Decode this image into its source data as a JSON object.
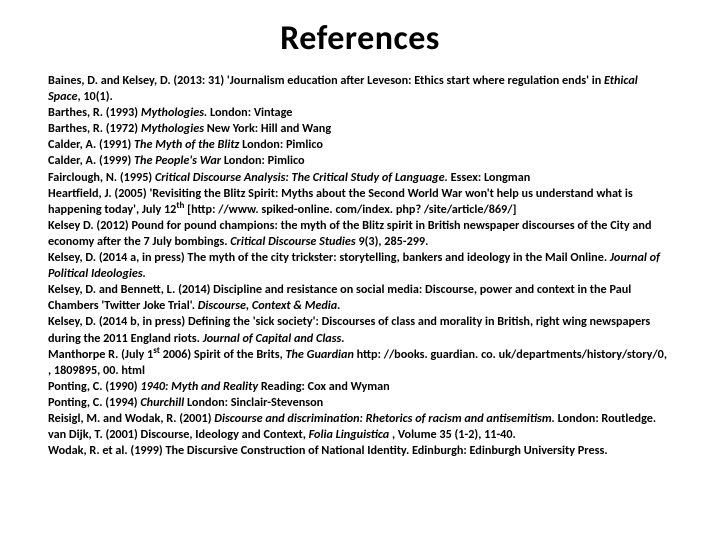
{
  "title": "References",
  "refs": [
    "Baines, D. and Kelsey, D. (2013: 31) 'Journalism education after Leveson: Ethics start where regulation ends' in <em>Ethical Space</em>, 10(1).",
    "Barthes, R. (1993) <em>Mythologies.</em> London: Vintage",
    "Barthes, R. (1972) <em>Mythologies</em> New York: Hill and Wang",
    "Calder, A. (1991) <em>The Myth of the Blitz</em> London: Pimlico",
    "Calder, A. (1999) <em>The People's War</em> London: Pimlico",
    "Fairclough, N. (1995) <em>Critical Discourse Analysis: The Critical Study of Language.</em> Essex: Longman",
    "Heartfield, J. (2005) 'Revisiting the Blitz Spirit: Myths about the Second World War won't help us understand what is happening today', July 12<sup>th</sup> [http: //www. spiked-online. com/index. php? /site/article/869/]",
    "Kelsey D. (2012) Pound for pound champions: the myth of the Blitz spirit in British newspaper discourses of the City and economy after the 7 July bombings. <em>Critical Discourse Studies</em> 9(3), 285-299.",
    "Kelsey, D. (2014 a, in press) The myth of the city trickster: storytelling, bankers and ideology in the Mail Online. <em>Journal of Political Ideologies.</em>",
    "Kelsey, D. and Bennett, L. (2014) Discipline and resistance on social media: Discourse, power and context in the Paul Chambers 'Twitter Joke Trial'. <em>Discourse, Context & Media.</em>",
    "Kelsey, D. (2014 b, in press) Defining the 'sick society': Discourses of class and morality in British, right wing newspapers during the 2011 England riots. <em>Journal of Capital and Class.</em>",
    "Manthorpe R. (July 1<sup>st</sup> 2006) Spirit of the Brits, <em>The Guardian</em> http: //books. guardian. co. uk/departments/history/story/0, , 1809895, 00. html",
    "Ponting, C. (1990) <em>1940: Myth and Reality</em> Reading: Cox and Wyman",
    "Ponting, C. (1994) <em>Churchill</em> London: Sinclair-Stevenson",
    "Reisigl, M. and Wodak, R. (2001) <em>Discourse and discrimination: Rhetorics of racism and antisemitism.</em> London: Routledge.",
    "van Dijk, T. (2001) Discourse, Ideology and Context,  <em>Folia Linguistica</em> , Volume 35 (1-2), 11-40.",
    "Wodak, R. et al. (1999) The Discursive Construction of National Identity. Edinburgh: Edinburgh University Press."
  ]
}
